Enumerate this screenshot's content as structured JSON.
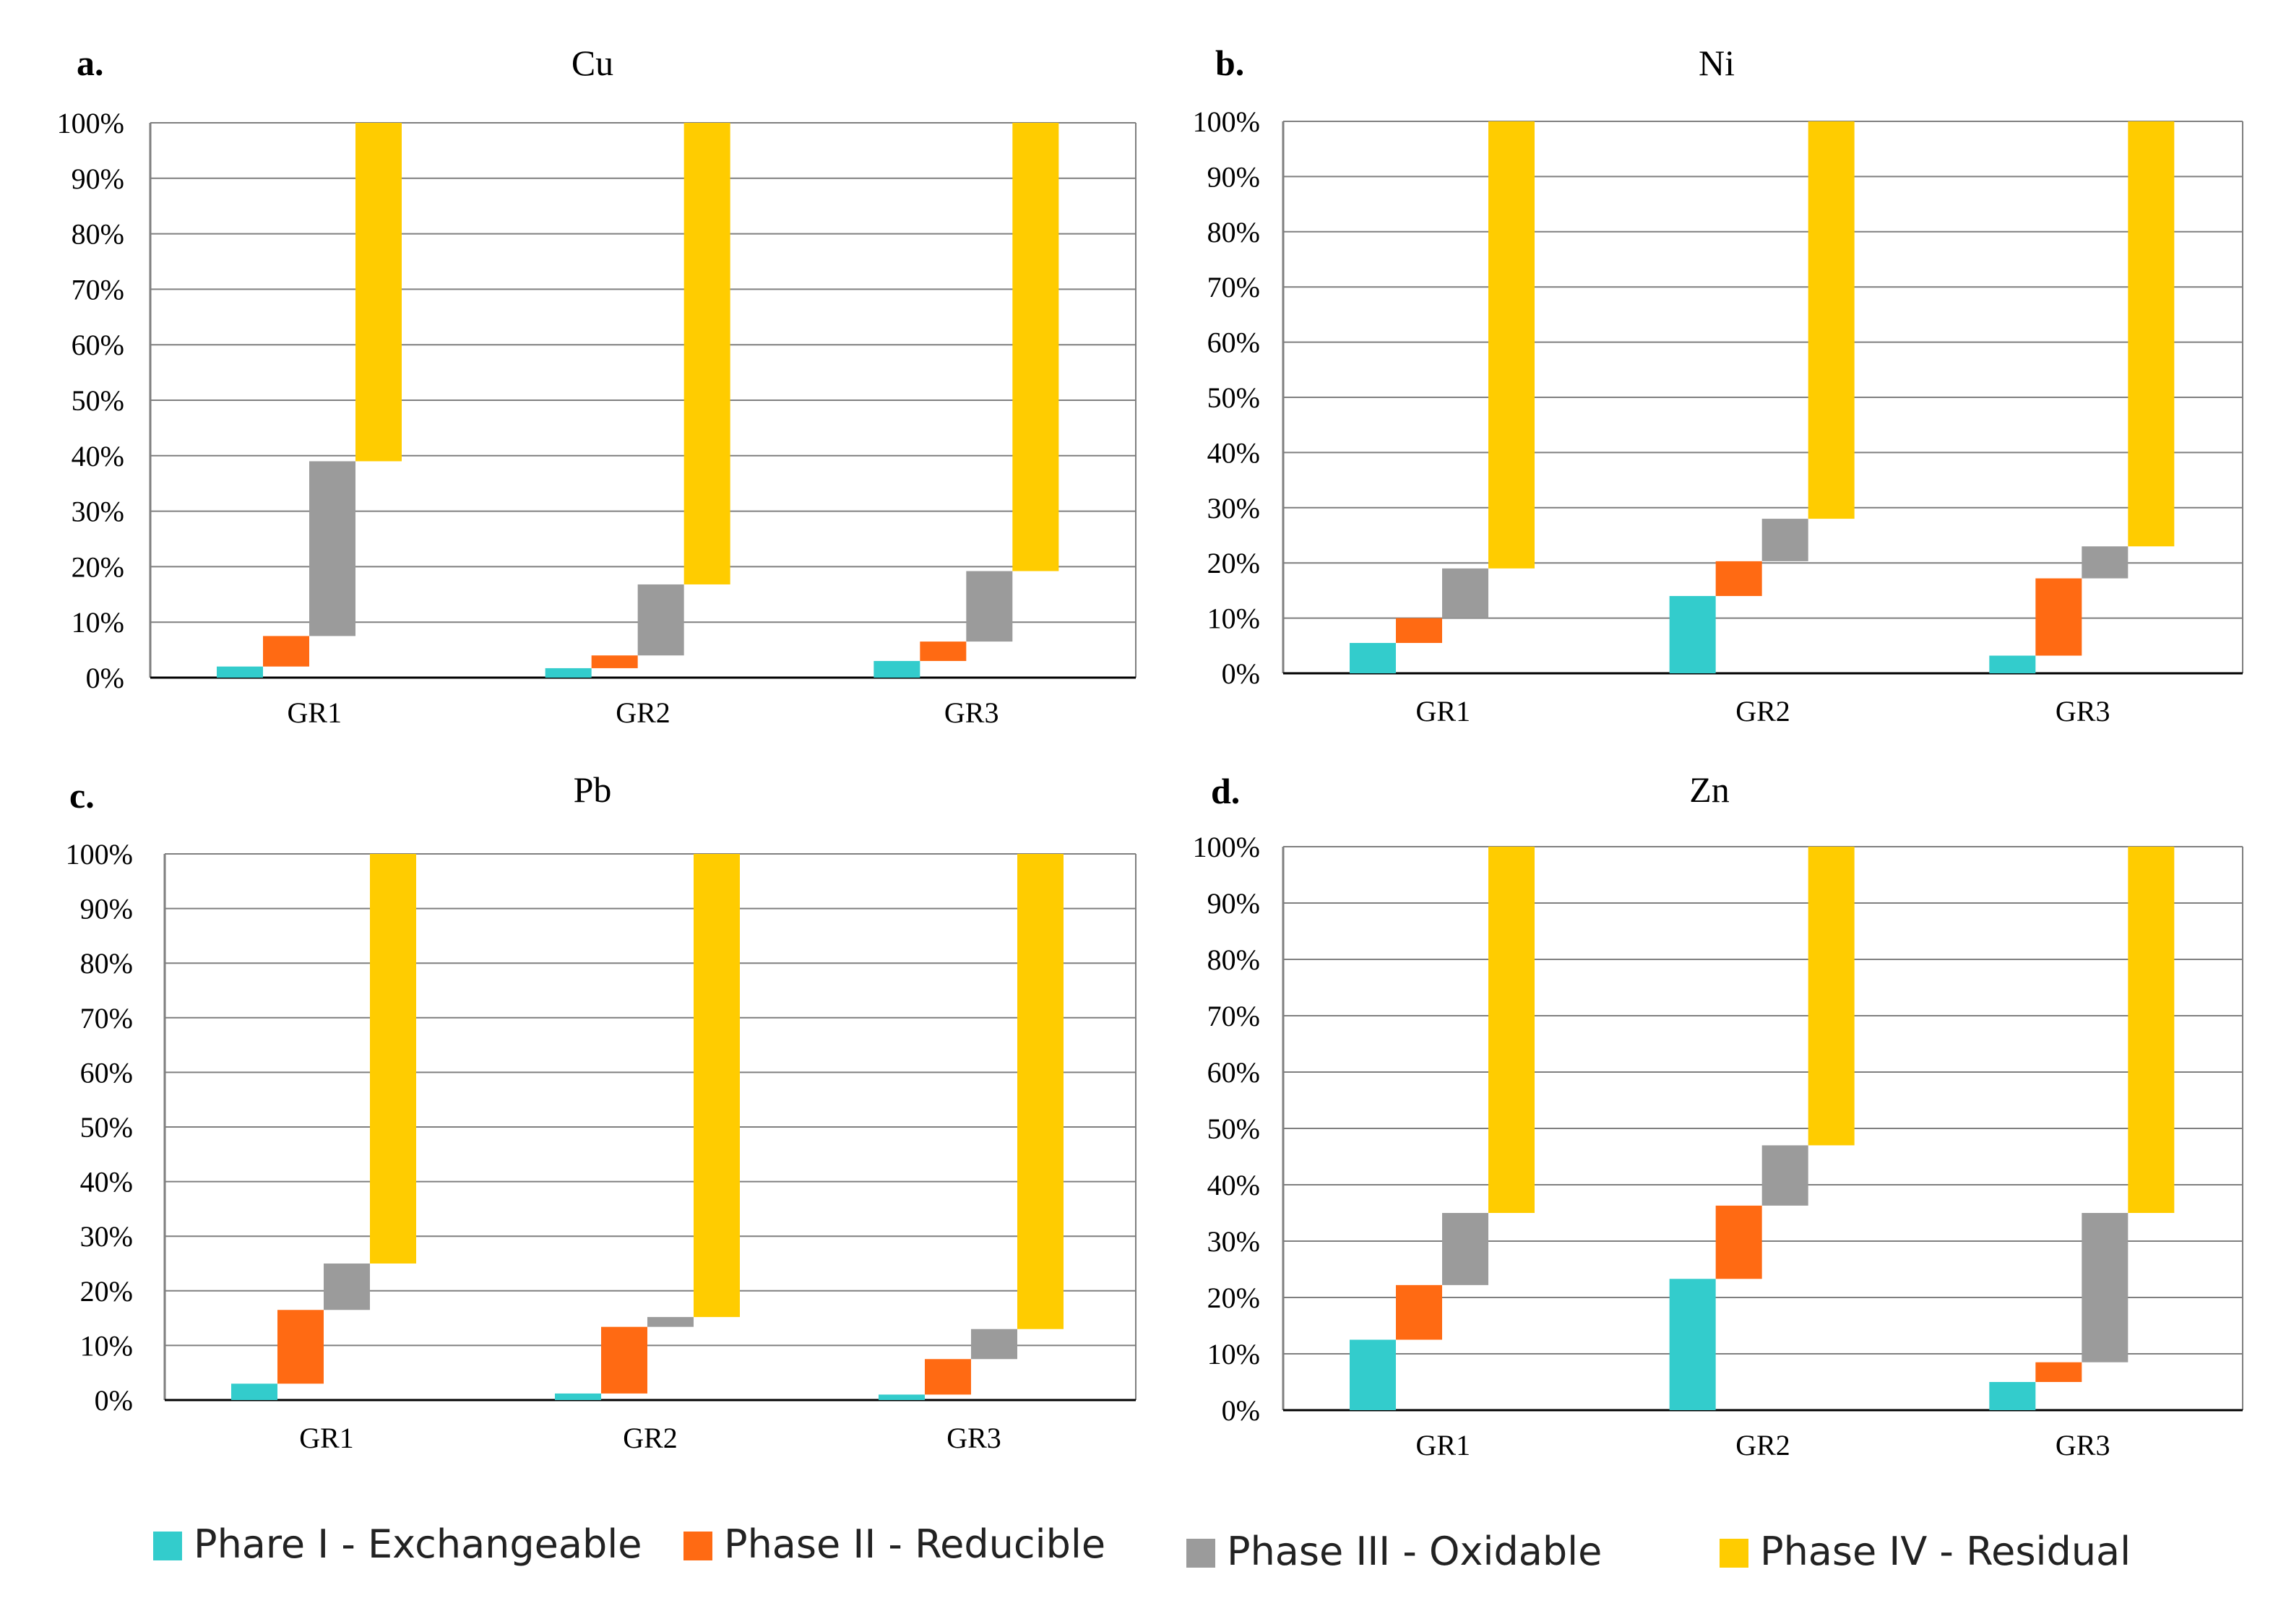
{
  "colors": {
    "phase1": "#33CCCC",
    "phase2": "#FF6A13",
    "phase3": "#9B9B9B",
    "phase4": "#FFCC00",
    "grid": "#7F7F7F",
    "axis": "#000000"
  },
  "legend": [
    {
      "label": "Phare I - Exchangeable",
      "color_key": "phase1"
    },
    {
      "label": "Phase II - Reducible",
      "color_key": "phase2"
    },
    {
      "label": "Phase III - Oxidable",
      "color_key": "phase3"
    },
    {
      "label": "Phase IV - Residual",
      "color_key": "phase4"
    }
  ],
  "chart_data": [
    {
      "type": "bar",
      "stacking": "waterfall",
      "panel_label": "a.",
      "title": "Cu",
      "categories": [
        "GR1",
        "GR2",
        "GR3"
      ],
      "y_tick_labels": [
        "0%",
        "10%",
        "20%",
        "30%",
        "40%",
        "50%",
        "60%",
        "70%",
        "80%",
        "90%",
        "100%"
      ],
      "ylim": [
        0,
        100
      ],
      "series": [
        {
          "name": "Phare I - Exchangeable",
          "values": [
            2,
            1.7,
            3
          ]
        },
        {
          "name": "Phase II - Reducible",
          "values": [
            5.5,
            2.3,
            3.5
          ]
        },
        {
          "name": "Phase III - Oxidable",
          "values": [
            31.5,
            12.8,
            12.7
          ]
        },
        {
          "name": "Phase IV - Residual",
          "values": [
            61,
            83.2,
            80.8
          ]
        }
      ]
    },
    {
      "type": "bar",
      "stacking": "waterfall",
      "panel_label": "b.",
      "title": "Ni",
      "categories": [
        "GR1",
        "GR2",
        "GR3"
      ],
      "y_tick_labels": [
        "0%",
        "10%",
        "20%",
        "30%",
        "40%",
        "50%",
        "60%",
        "70%",
        "80%",
        "90%",
        "100%"
      ],
      "ylim": [
        0,
        100
      ],
      "series": [
        {
          "name": "Phare I - Exchangeable",
          "values": [
            5.5,
            14,
            3.2
          ]
        },
        {
          "name": "Phase II - Reducible",
          "values": [
            4.5,
            6.3,
            14
          ]
        },
        {
          "name": "Phase III - Oxidable",
          "values": [
            9,
            7.7,
            5.8
          ]
        },
        {
          "name": "Phase IV - Residual",
          "values": [
            81,
            72,
            77
          ]
        }
      ]
    },
    {
      "type": "bar",
      "stacking": "waterfall",
      "panel_label": "c.",
      "title": "Pb",
      "categories": [
        "GR1",
        "GR2",
        "GR3"
      ],
      "y_tick_labels": [
        "0%",
        "10%",
        "20%",
        "30%",
        "40%",
        "50%",
        "60%",
        "70%",
        "80%",
        "90%",
        "100%"
      ],
      "ylim": [
        0,
        100
      ],
      "series": [
        {
          "name": "Phare I - Exchangeable",
          "values": [
            3,
            1.2,
            1
          ]
        },
        {
          "name": "Phase II - Reducible",
          "values": [
            13.5,
            12.2,
            6.5
          ]
        },
        {
          "name": "Phase III - Oxidable",
          "values": [
            8.5,
            1.8,
            5.5
          ]
        },
        {
          "name": "Phase IV - Residual",
          "values": [
            75,
            84.8,
            87
          ]
        }
      ]
    },
    {
      "type": "bar",
      "stacking": "waterfall",
      "panel_label": "d.",
      "title": "Zn",
      "categories": [
        "GR1",
        "GR2",
        "GR3"
      ],
      "y_tick_labels": [
        "0%",
        "10%",
        "20%",
        "30%",
        "40%",
        "50%",
        "60%",
        "70%",
        "80%",
        "90%",
        "100%"
      ],
      "ylim": [
        0,
        100
      ],
      "series": [
        {
          "name": "Phare I - Exchangeable",
          "values": [
            12.5,
            23.3,
            5
          ]
        },
        {
          "name": "Phase II - Reducible",
          "values": [
            9.7,
            13,
            3.5
          ]
        },
        {
          "name": "Phase III - Oxidable",
          "values": [
            12.8,
            10.7,
            26.5
          ]
        },
        {
          "name": "Phase IV - Residual",
          "values": [
            65,
            53,
            65
          ]
        }
      ]
    }
  ]
}
